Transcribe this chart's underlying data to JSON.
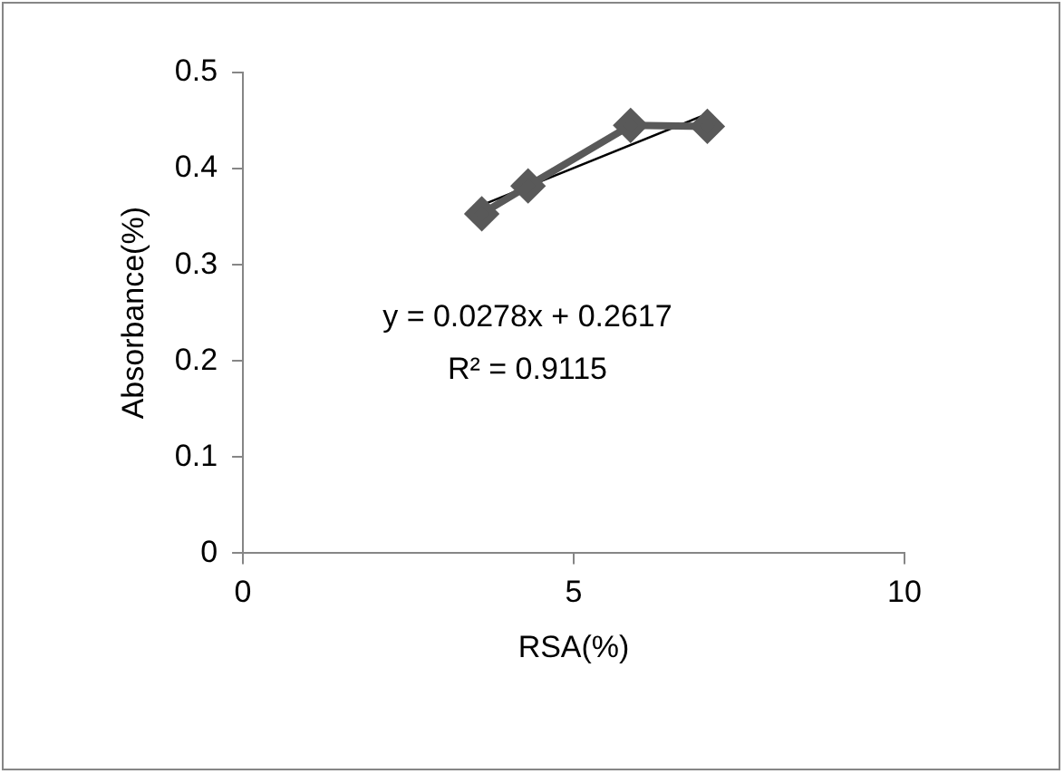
{
  "chart_data": {
    "type": "line",
    "xlabel": "RSA(%)",
    "ylabel": "Absorbance(%)",
    "xlim": [
      0,
      10
    ],
    "xticks": [
      0,
      5,
      10
    ],
    "ylim": [
      0,
      0.5
    ],
    "yticks": [
      0,
      0.1,
      0.2,
      0.3,
      0.4,
      0.5
    ],
    "grid": false,
    "legend": false,
    "annotations": [
      "y = 0.0278x + 0.2617",
      "R² = 0.9115"
    ],
    "series": [
      {
        "color": "#595959",
        "marker": "diamond",
        "x": [
          3.61,
          4.31,
          5.86,
          7.02
        ],
        "values": [
          0.353,
          0.382,
          0.445,
          0.444
        ]
      },
      {
        "color": "#000000",
        "marker": "none",
        "x": [
          3.61,
          7.02
        ],
        "values": [
          0.362,
          0.457
        ]
      }
    ]
  }
}
